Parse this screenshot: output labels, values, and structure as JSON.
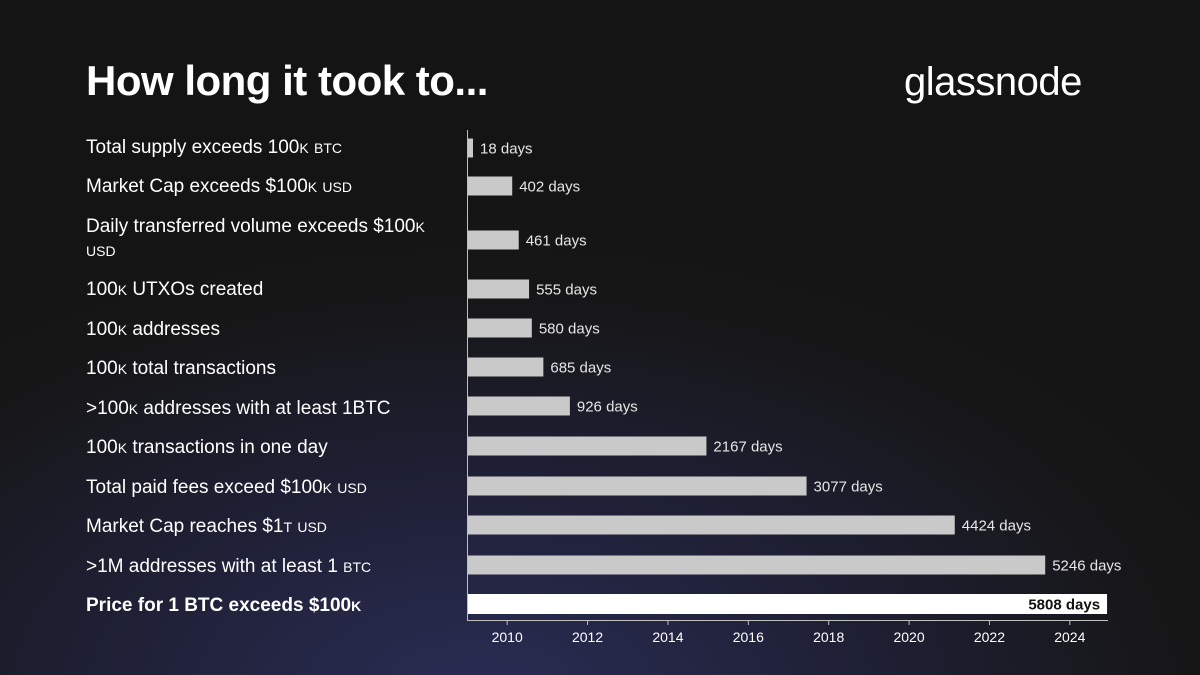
{
  "title": "How long it took to...",
  "logo": "glassnode",
  "colors": {
    "bar": "#c9c9c9",
    "bar_highlight": "#ffffff",
    "value_text": "#e6e6e6",
    "value_text_highlight": "#111111",
    "axis": "#bfbfbf"
  },
  "chart_data": {
    "type": "bar",
    "orientation": "horizontal",
    "x_origin": 2009,
    "xlim": [
      2009,
      2024.95
    ],
    "x_unit": "year",
    "xticks": [
      "2010",
      "2012",
      "2014",
      "2016",
      "2018",
      "2020",
      "2022",
      "2024"
    ],
    "grid": false,
    "legend": "none",
    "categories": [
      {
        "parts": [
          {
            "t": "Total supply exceeds 100"
          },
          {
            "t": "k",
            "sc": true
          },
          {
            "t": " "
          },
          {
            "t": "btc",
            "sc": true
          }
        ]
      },
      {
        "parts": [
          {
            "t": "Market Cap exceeds $100"
          },
          {
            "t": "k",
            "sc": true
          },
          {
            "t": " "
          },
          {
            "t": "usd",
            "sc": true
          }
        ]
      },
      {
        "parts": [
          {
            "t": "Daily transferred volume exceeds $100"
          },
          {
            "t": "k",
            "sc": true
          },
          {
            "t": " "
          },
          {
            "t": "usd",
            "sc": true
          }
        ]
      },
      {
        "parts": [
          {
            "t": "100"
          },
          {
            "t": "k",
            "sc": true
          },
          {
            "t": " UTXOs created"
          }
        ]
      },
      {
        "parts": [
          {
            "t": "100"
          },
          {
            "t": "k",
            "sc": true
          },
          {
            "t": " addresses"
          }
        ]
      },
      {
        "parts": [
          {
            "t": "100"
          },
          {
            "t": "k",
            "sc": true
          },
          {
            "t": " total transactions"
          }
        ]
      },
      {
        "parts": [
          {
            "t": ">100"
          },
          {
            "t": "k",
            "sc": true
          },
          {
            "t": " addresses with at least 1BTC"
          }
        ]
      },
      {
        "parts": [
          {
            "t": "100"
          },
          {
            "t": "k",
            "sc": true
          },
          {
            "t": " transactions in one day"
          }
        ]
      },
      {
        "parts": [
          {
            "t": "Total paid fees exceed $100"
          },
          {
            "t": "k",
            "sc": true
          },
          {
            "t": " "
          },
          {
            "t": "usd",
            "sc": true
          }
        ]
      },
      {
        "parts": [
          {
            "t": "Market Cap reaches $1"
          },
          {
            "t": "t",
            "sc": true
          },
          {
            "t": " "
          },
          {
            "t": "usd",
            "sc": true
          }
        ]
      },
      {
        "parts": [
          {
            "t": ">1M addresses with at least 1 "
          },
          {
            "t": "btc",
            "sc": true
          }
        ]
      },
      {
        "parts": [
          {
            "t": "Price for 1 BTC exceeds $100"
          },
          {
            "t": "k",
            "sc": true
          }
        ],
        "highlight": true
      }
    ],
    "values": [
      18,
      402,
      461,
      555,
      580,
      685,
      926,
      2167,
      3077,
      4424,
      5246,
      5808
    ],
    "value_labels": [
      "18 days",
      "402 days",
      "461 days",
      "555 days",
      "580 days",
      "685 days",
      "926 days",
      "2167 days",
      "3077 days",
      "4424 days",
      "5246 days",
      "5808 days"
    ],
    "highlight_index": 11
  }
}
